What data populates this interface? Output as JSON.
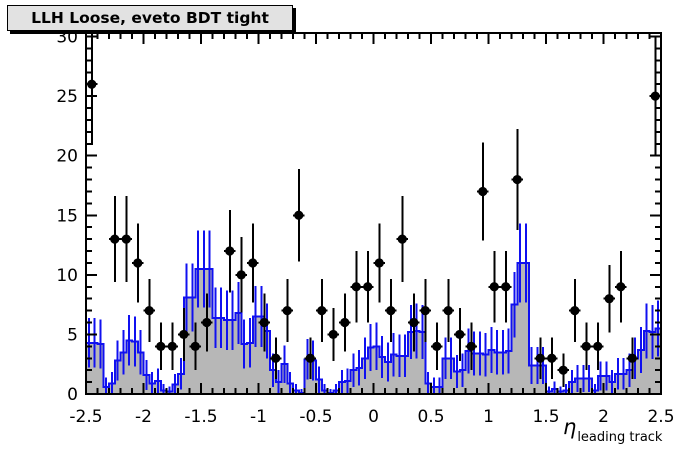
{
  "title": "LLH Loose, eveto BDT tight",
  "colors": {
    "background": "#ffffff",
    "frame": "#000000",
    "hist_fill": "#b7b7b7",
    "hist_line": "#1010f0",
    "marker": "#000000",
    "title_bg": "#e2e2e2"
  },
  "axes": {
    "x": {
      "label_main": "η",
      "label_sub": "leading track",
      "min": -2.5,
      "max": 2.5,
      "major_step": 0.5,
      "minor_step": 0.1,
      "tick_labels": [
        "-2.5",
        "-2",
        "-1.5",
        "-1",
        "-0.5",
        "0",
        "0.5",
        "1",
        "1.5",
        "2",
        "2.5"
      ]
    },
    "y": {
      "min": 0,
      "max": 30.3,
      "major_step": 5,
      "minor_step": 1,
      "tick_labels": [
        "0",
        "5",
        "10",
        "15",
        "20",
        "25",
        "30"
      ]
    }
  },
  "chart_data": {
    "type": "histogram_with_points",
    "title": "LLH Loose, eveto BDT tight",
    "xlabel": "eta leading track",
    "ylabel": "",
    "x_range": [
      -2.5,
      2.5
    ],
    "y_range": [
      0,
      30.3
    ],
    "grid": false,
    "legend": "none",
    "histogram": {
      "style": "filled steps with blue outline and sqrt(N) error bars",
      "bin_width": 0.05,
      "x_start": -2.5,
      "errors": "sqrt",
      "values": [
        4.3,
        4.3,
        4.2,
        0.6,
        0.9,
        2.8,
        3.5,
        4.5,
        4.4,
        3.5,
        1.6,
        0.9,
        1.1,
        0.3,
        0.2,
        0.8,
        1.7,
        8.1,
        8.1,
        10.5,
        10.5,
        10.5,
        6.4,
        6.4,
        6.2,
        6.2,
        6.8,
        4.2,
        4.3,
        6.5,
        6.5,
        5.3,
        2.0,
        1.0,
        2.5,
        0.9,
        0.3,
        0.1,
        2.9,
        2.8,
        1.2,
        0.3,
        0.1,
        0.3,
        1.0,
        1.1,
        2.0,
        2.2,
        3.0,
        3.9,
        4.0,
        3.1,
        2.7,
        3.3,
        3.2,
        3.2,
        5.2,
        5.3,
        5.2,
        0.9,
        0.6,
        0.6,
        3.0,
        3.0,
        1.9,
        2.0,
        3.6,
        3.4,
        3.4,
        3.3,
        3.7,
        3.5,
        3.5,
        3.6,
        7.5,
        11.0,
        11.0,
        2.4,
        2.4,
        2.4,
        0.2,
        0.4,
        0.2,
        0.3,
        1.0,
        1.3,
        1.3,
        1.3,
        0.3,
        1.5,
        1.5,
        1.0,
        1.7,
        1.7,
        2.0,
        3.0,
        3.7,
        5.3,
        5.2,
        5.5
      ]
    },
    "points": {
      "style": "black filled circle markers, sqrt(N) vertical errors, half-bin horizontal errors",
      "marker": "filled-circle",
      "x_half_width": 0.05,
      "errors": "sqrt",
      "xy": [
        [
          -2.45,
          26
        ],
        [
          -2.25,
          13
        ],
        [
          -2.15,
          13
        ],
        [
          -2.05,
          11
        ],
        [
          -1.95,
          7
        ],
        [
          -1.85,
          4
        ],
        [
          -1.75,
          4
        ],
        [
          -1.65,
          5
        ],
        [
          -1.55,
          4
        ],
        [
          -1.45,
          6
        ],
        [
          -1.25,
          12
        ],
        [
          -1.15,
          10
        ],
        [
          -1.05,
          11
        ],
        [
          -0.95,
          6
        ],
        [
          -0.85,
          3
        ],
        [
          -0.75,
          7
        ],
        [
          -0.65,
          15
        ],
        [
          -0.55,
          3
        ],
        [
          -0.45,
          7
        ],
        [
          -0.35,
          5
        ],
        [
          -0.25,
          6
        ],
        [
          -0.15,
          9
        ],
        [
          -0.05,
          9
        ],
        [
          0.05,
          11
        ],
        [
          0.15,
          7
        ],
        [
          0.25,
          13
        ],
        [
          0.35,
          6
        ],
        [
          0.45,
          7
        ],
        [
          0.55,
          4
        ],
        [
          0.65,
          7
        ],
        [
          0.75,
          5
        ],
        [
          0.85,
          4
        ],
        [
          0.95,
          17
        ],
        [
          1.05,
          9
        ],
        [
          1.15,
          9
        ],
        [
          1.25,
          18
        ],
        [
          1.45,
          3
        ],
        [
          1.55,
          3
        ],
        [
          1.65,
          2
        ],
        [
          1.75,
          7
        ],
        [
          1.85,
          4
        ],
        [
          1.95,
          4
        ],
        [
          2.05,
          8
        ],
        [
          2.15,
          9
        ],
        [
          2.25,
          3
        ],
        [
          2.45,
          25
        ]
      ]
    }
  }
}
